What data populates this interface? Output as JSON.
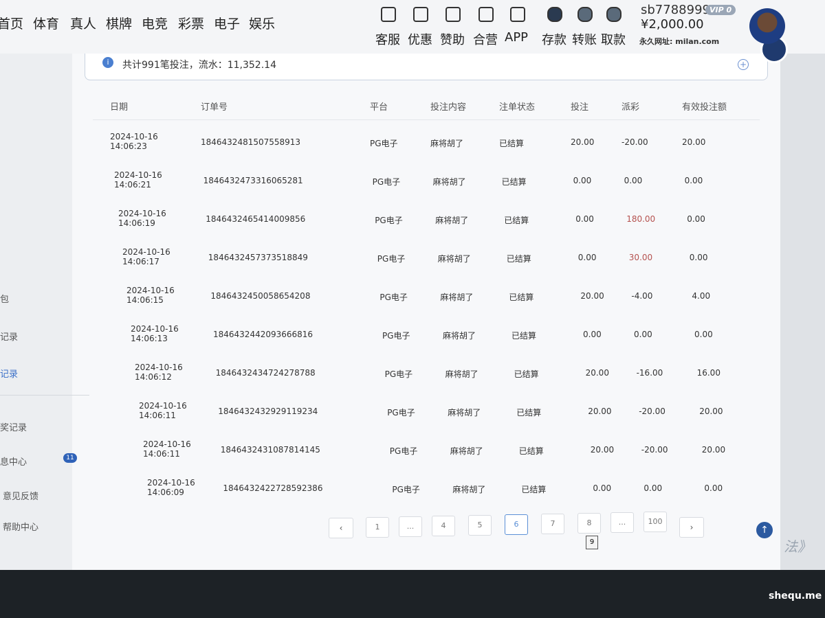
{
  "nav": {
    "items": [
      "首页",
      "体育",
      "真人",
      "棋牌",
      "电竞",
      "彩票",
      "电子",
      "娱乐"
    ],
    "actions": [
      "客服",
      "优惠",
      "赞助",
      "合营",
      "APP",
      "存款",
      "转账",
      "取款"
    ]
  },
  "user": {
    "name": "sb7788999",
    "vip": "VIP 0",
    "balance": "¥2,000.00",
    "site": "永久网址: milan.com"
  },
  "summary": "共计991笔投注，流水：11,352.14",
  "sidebar": {
    "items": [
      "包",
      "记录",
      "记录",
      "奖记录",
      "息中心",
      "意见反馈",
      "帮助中心"
    ],
    "badge": "11",
    "active": 2
  },
  "table": {
    "headers": [
      "日期",
      "订单号",
      "平台",
      "投注内容",
      "注单状态",
      "投注",
      "派彩",
      "有效投注额"
    ],
    "rows": [
      [
        "2024-10-16 14:06:23",
        "1846432481507558913",
        "PG电子",
        "麻将胡了",
        "已结算",
        "20.00",
        "-20.00",
        "20.00"
      ],
      [
        "2024-10-16 14:06:21",
        "1846432473316065281",
        "PG电子",
        "麻将胡了",
        "已结算",
        "0.00",
        "0.00",
        "0.00"
      ],
      [
        "2024-10-16 14:06:19",
        "1846432465414009856",
        "PG电子",
        "麻将胡了",
        "已结算",
        "0.00",
        "180.00",
        "0.00"
      ],
      [
        "2024-10-16 14:06:17",
        "1846432457373518849",
        "PG电子",
        "麻将胡了",
        "已结算",
        "0.00",
        "30.00",
        "0.00"
      ],
      [
        "2024-10-16 14:06:15",
        "1846432450058654208",
        "PG电子",
        "麻将胡了",
        "已结算",
        "20.00",
        "-4.00",
        "4.00"
      ],
      [
        "2024-10-16 14:06:13",
        "1846432442093666816",
        "PG电子",
        "麻将胡了",
        "已结算",
        "0.00",
        "0.00",
        "0.00"
      ],
      [
        "2024-10-16 14:06:12",
        "1846432434724278788",
        "PG电子",
        "麻将胡了",
        "已结算",
        "20.00",
        "-16.00",
        "16.00"
      ],
      [
        "2024-10-16 14:06:11",
        "1846432432929119234",
        "PG电子",
        "麻将胡了",
        "已结算",
        "20.00",
        "-20.00",
        "20.00"
      ],
      [
        "2024-10-16 14:06:11",
        "1846432431087814145",
        "PG电子",
        "麻将胡了",
        "已结算",
        "20.00",
        "-20.00",
        "20.00"
      ],
      [
        "2024-10-16 14:06:09",
        "1846432422728592386",
        "PG电子",
        "麻将胡了",
        "已结算",
        "0.00",
        "0.00",
        "0.00"
      ]
    ]
  },
  "pagination": {
    "pages": [
      "1",
      "...",
      "4",
      "5",
      "6",
      "7",
      "8",
      "...",
      "100"
    ],
    "active": 4,
    "tooltip": "9"
  },
  "overlay": {
    "caption": "法》",
    "watermark": "shequ.me"
  }
}
